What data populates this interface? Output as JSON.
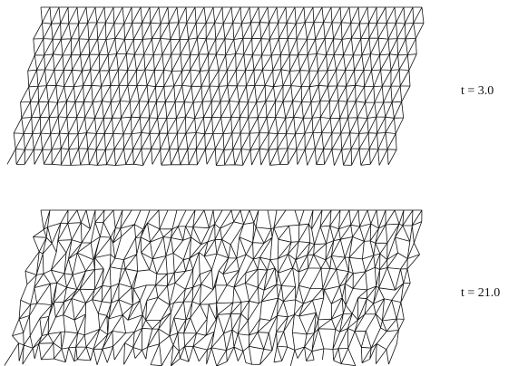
{
  "panels": [
    {
      "label": "t = 3.0"
    },
    {
      "label": "t = 21.0"
    }
  ]
}
